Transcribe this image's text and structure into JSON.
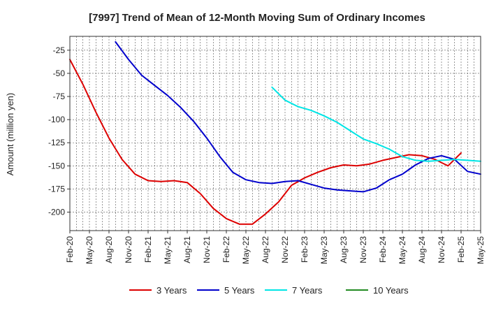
{
  "chart_data": {
    "type": "line",
    "title": "[7997]  Trend of Mean of 12-Month Moving Sum of Ordinary Incomes",
    "xlabel": "",
    "ylabel": "Amount (million yen)",
    "ylim": [
      -220,
      -10
    ],
    "yticks": [
      -25,
      -50,
      -75,
      -100,
      -125,
      -150,
      -175,
      -200
    ],
    "xlim": [
      0,
      63
    ],
    "xtick_labels": [
      "Feb-20",
      "May-20",
      "Aug-20",
      "Nov-20",
      "Feb-21",
      "May-21",
      "Aug-21",
      "Nov-21",
      "Feb-22",
      "May-22",
      "Aug-22",
      "Nov-22",
      "Feb-23",
      "May-23",
      "Aug-23",
      "Nov-23",
      "Feb-24",
      "May-24",
      "Aug-24",
      "Nov-24",
      "Feb-25",
      "May-25"
    ],
    "grid": true,
    "legend_position": "bottom",
    "series": [
      {
        "name": "3 Years",
        "color": "#dd0000",
        "x": [
          0,
          2,
          4,
          6,
          8,
          10,
          12,
          14,
          16,
          18,
          20,
          22,
          24,
          26,
          28,
          30,
          32,
          34,
          36,
          38,
          40,
          42,
          44,
          46,
          48,
          50,
          52,
          54,
          56,
          58,
          60
        ],
        "y": [
          -35,
          -62,
          -92,
          -120,
          -143,
          -159,
          -166,
          -167,
          -166,
          -168,
          -180,
          -196,
          -207,
          -213,
          -213,
          -202,
          -189,
          -171,
          -163,
          -157,
          -152,
          -149,
          -150,
          -148,
          -144,
          -141,
          -138,
          -139,
          -143,
          -150,
          -136
        ]
      },
      {
        "name": "5 Years",
        "color": "#0000cc",
        "x": [
          7,
          9,
          11,
          13,
          15,
          17,
          19,
          21,
          23,
          25,
          27,
          29,
          31,
          33,
          35,
          37,
          39,
          41,
          43,
          45,
          47,
          49,
          51,
          53,
          55,
          57,
          59,
          61,
          63
        ],
        "y": [
          -16,
          -35,
          -52,
          -63,
          -74,
          -87,
          -102,
          -120,
          -140,
          -157,
          -165,
          -168,
          -169,
          -167,
          -166,
          -170,
          -174,
          -176,
          -177,
          -178,
          -174,
          -165,
          -159,
          -149,
          -142,
          -139,
          -143,
          -156,
          -159
        ]
      },
      {
        "name": "7 Years",
        "color": "#00e5e5",
        "x": [
          31,
          33,
          35,
          37,
          39,
          41,
          43,
          45,
          47,
          49,
          51,
          53,
          55,
          57,
          59,
          61,
          63
        ],
        "y": [
          -65,
          -79,
          -86,
          -90,
          -96,
          -103,
          -112,
          -121,
          -126,
          -132,
          -140,
          -144,
          -145,
          -144,
          -143,
          -144,
          -145
        ]
      },
      {
        "name": "10 Years",
        "color": "#228b22",
        "x": [],
        "y": []
      }
    ]
  }
}
